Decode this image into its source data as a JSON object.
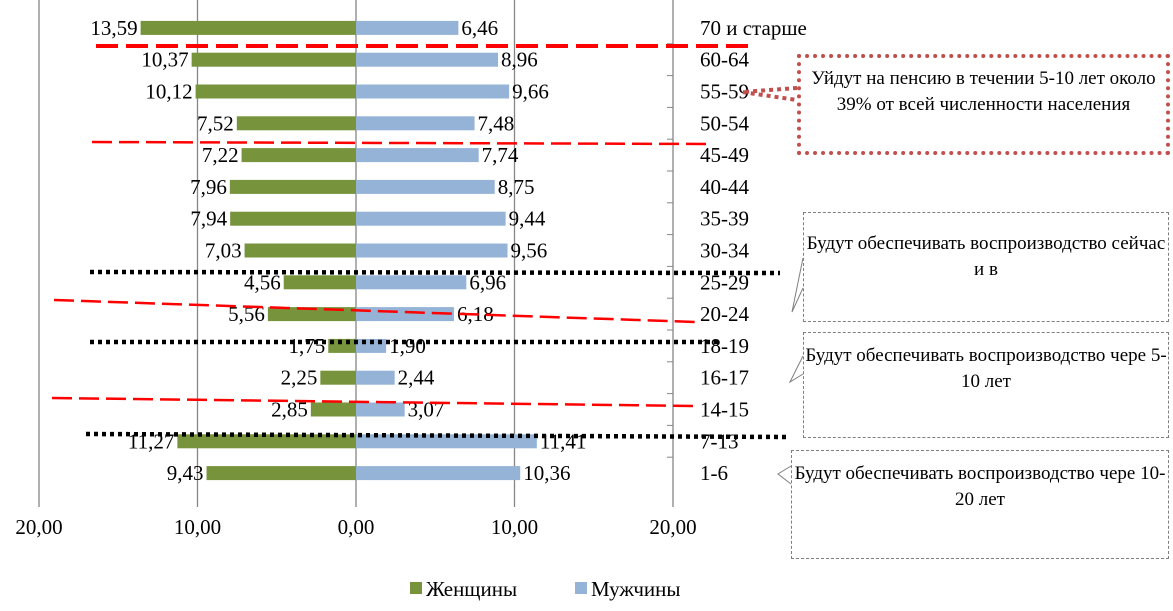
{
  "chart_data": {
    "type": "bar",
    "orientation": "horizontal",
    "layout": "population-pyramid",
    "categories": [
      "70 и старше",
      "60-64",
      "55-59",
      "50-54",
      "45-49",
      "40-44",
      "35-39",
      "30-34",
      "25-29",
      "20-24",
      "18-19",
      "16-17",
      "14-15",
      "7-13",
      "1-6"
    ],
    "series": [
      {
        "name": "Женщины",
        "side": "left",
        "color": "#77933c",
        "values": [
          13.59,
          10.37,
          10.12,
          7.52,
          7.22,
          7.96,
          7.94,
          7.03,
          4.56,
          5.56,
          1.75,
          2.25,
          2.85,
          11.27,
          9.43
        ],
        "labels": [
          "13,59",
          "10,37",
          "10,12",
          "7,52",
          "7,22",
          "7,96",
          "7,94",
          "7,03",
          "4,56",
          "5,56",
          "1,75",
          "2,25",
          "2,85",
          "11,27",
          "9,43"
        ]
      },
      {
        "name": "Мужчины",
        "side": "right",
        "color": "#95b3d7",
        "values": [
          6.46,
          8.96,
          9.66,
          7.48,
          7.74,
          8.75,
          9.44,
          9.56,
          6.96,
          6.18,
          1.9,
          2.44,
          3.07,
          11.41,
          10.36
        ],
        "labels": [
          "6,46",
          "8,96",
          "9,66",
          "7,48",
          "7,74",
          "8,75",
          "9,44",
          "9,56",
          "6,96",
          "6,18",
          "1,90",
          "2,44",
          "3,07",
          "11,41",
          "10,36"
        ]
      }
    ],
    "xlim": [
      -20,
      20
    ],
    "x_ticks": [
      -20,
      -10,
      0,
      10,
      20
    ],
    "x_tick_labels": [
      "20,00",
      "10,00",
      "0,00",
      "10,00",
      "20,00"
    ],
    "grid": "vertical",
    "legend_position": "bottom-center",
    "separators": [
      {
        "style": "red-dashed",
        "between": [
          "70 и старше",
          "60-64"
        ]
      },
      {
        "style": "red-dashed",
        "between": [
          "50-54",
          "45-49"
        ]
      },
      {
        "style": "black-dotted",
        "between": [
          "30-34",
          "25-29"
        ]
      },
      {
        "style": "red-dashed",
        "between": [
          "25-29",
          "20-24"
        ]
      },
      {
        "style": "black-dotted",
        "between": [
          "20-24",
          "18-19"
        ]
      },
      {
        "style": "red-dashed",
        "between": [
          "16-17",
          "14-15"
        ]
      },
      {
        "style": "black-dotted",
        "between": [
          "14-15",
          "7-13"
        ]
      }
    ],
    "annotations": [
      "Уйдут на пенсию в течении 5-10 лет около 39% от всей численности населения",
      "Будут обеспечивать воспроизводство сейчас и в",
      "Будут обеспечивать воспроизводство чере 5-10 лет",
      "Будут обеспечивать воспроизводство чере 10-20 лет"
    ],
    "annotation_colors": {
      "pension_border": "#c0504d",
      "separator_red": "#ff0000",
      "separator_black": "#000000"
    }
  }
}
